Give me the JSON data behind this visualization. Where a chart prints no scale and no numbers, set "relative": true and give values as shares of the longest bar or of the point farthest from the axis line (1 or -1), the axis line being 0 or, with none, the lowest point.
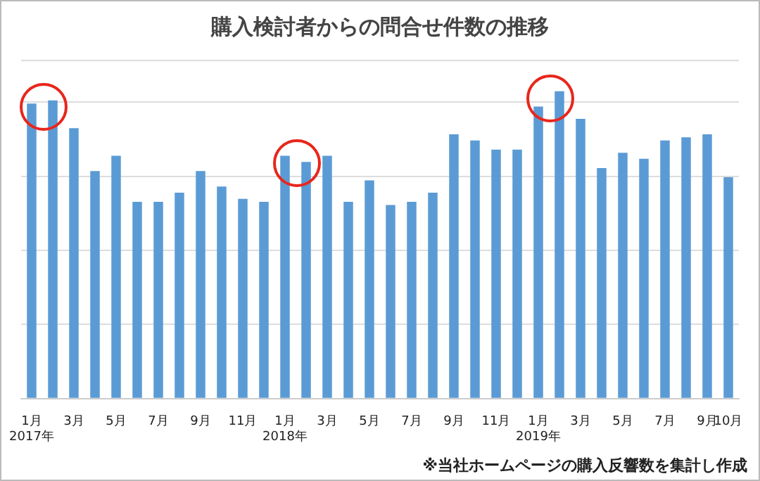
{
  "chart_data": {
    "type": "bar",
    "title": "購入検討者からの問合せ件数の推移",
    "relative": true,
    "grid": "y",
    "color": "#5b9bd5",
    "categories": [
      "1月\n2017年",
      null,
      "3月",
      null,
      "5月",
      null,
      "7月",
      null,
      "9月",
      null,
      "11月",
      null,
      "1月\n2018年",
      null,
      "3月",
      null,
      "5月",
      null,
      "7月",
      null,
      "9月",
      null,
      "11月",
      null,
      "1月\n2019年",
      null,
      "3月",
      null,
      "5月",
      null,
      "7月",
      null,
      "9月",
      "10月"
    ],
    "values": [
      0.96,
      0.97,
      0.88,
      0.74,
      0.79,
      0.64,
      0.64,
      0.67,
      0.74,
      0.69,
      0.65,
      0.64,
      0.79,
      0.77,
      0.79,
      0.64,
      0.71,
      0.63,
      0.64,
      0.67,
      0.86,
      0.84,
      0.81,
      0.81,
      0.95,
      1,
      0.91,
      0.75,
      0.8,
      0.78,
      0.84,
      0.85,
      0.86,
      0.72
    ],
    "annotations": [
      "※当社ホームページの購入反響数を集計し作成"
    ]
  }
}
